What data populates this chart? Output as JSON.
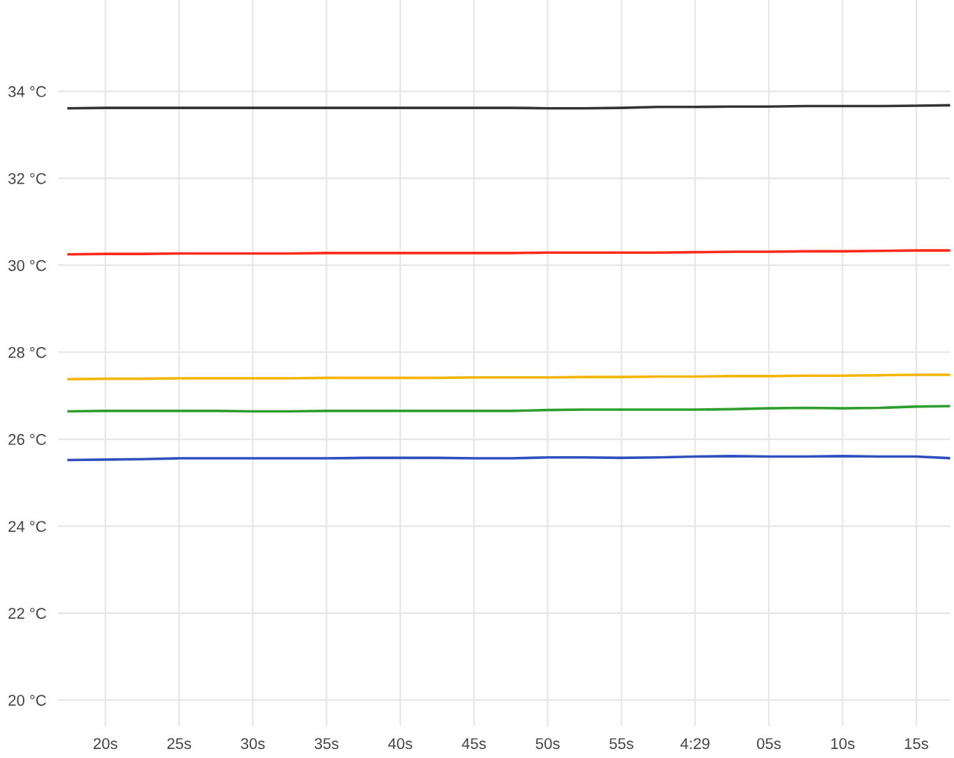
{
  "chart_data": {
    "type": "line",
    "categories": [
      null,
      "20s",
      null,
      "25s",
      null,
      "30s",
      null,
      "35s",
      null,
      "40s",
      null,
      "45s",
      null,
      "50s",
      null,
      "55s",
      null,
      "4:29",
      null,
      "05s",
      null,
      "10s",
      null,
      "15s",
      null
    ],
    "series": [
      {
        "color": "#333333",
        "values": [
          33.61,
          33.62,
          33.62,
          33.62,
          33.62,
          33.62,
          33.62,
          33.62,
          33.62,
          33.62,
          33.62,
          33.62,
          33.62,
          33.61,
          33.61,
          33.62,
          33.64,
          33.64,
          33.65,
          33.65,
          33.66,
          33.66,
          33.66,
          33.67,
          33.68
        ]
      },
      {
        "color": "#ff2a1a",
        "values": [
          30.25,
          30.26,
          30.26,
          30.27,
          30.27,
          30.27,
          30.27,
          30.28,
          30.28,
          30.28,
          30.28,
          30.28,
          30.28,
          30.29,
          30.29,
          30.29,
          30.29,
          30.3,
          30.31,
          30.31,
          30.32,
          30.32,
          30.33,
          30.34,
          30.34
        ]
      },
      {
        "color": "#f5b400",
        "values": [
          27.38,
          27.39,
          27.39,
          27.4,
          27.4,
          27.4,
          27.4,
          27.41,
          27.41,
          27.41,
          27.41,
          27.42,
          27.42,
          27.42,
          27.43,
          27.43,
          27.44,
          27.44,
          27.45,
          27.45,
          27.46,
          27.46,
          27.47,
          27.48,
          27.48
        ]
      },
      {
        "color": "#2e9e2e",
        "values": [
          26.64,
          26.65,
          26.65,
          26.65,
          26.65,
          26.64,
          26.64,
          26.65,
          26.65,
          26.65,
          26.65,
          26.65,
          26.65,
          26.67,
          26.68,
          26.68,
          26.68,
          26.68,
          26.69,
          26.71,
          26.72,
          26.71,
          26.72,
          26.75,
          26.76
        ]
      },
      {
        "color": "#2f4fbf",
        "values": [
          25.52,
          25.53,
          25.54,
          25.56,
          25.56,
          25.56,
          25.56,
          25.56,
          25.57,
          25.57,
          25.57,
          25.56,
          25.56,
          25.58,
          25.58,
          25.57,
          25.58,
          25.6,
          25.61,
          25.6,
          25.6,
          25.61,
          25.6,
          25.6,
          25.56
        ]
      }
    ],
    "ylim": [
      19.4,
      36.1
    ],
    "yticks": [
      {
        "value": 20,
        "label": "20 °C"
      },
      {
        "value": 22,
        "label": "22 °C"
      },
      {
        "value": 24,
        "label": "24 °C"
      },
      {
        "value": 26,
        "label": "26 °C"
      },
      {
        "value": 28,
        "label": "28 °C"
      },
      {
        "value": 30,
        "label": "30 °C"
      },
      {
        "value": 32,
        "label": "32 °C"
      },
      {
        "value": 34,
        "label": "34 °C"
      }
    ],
    "grid": true,
    "marker": "none",
    "line_style": "solid"
  }
}
